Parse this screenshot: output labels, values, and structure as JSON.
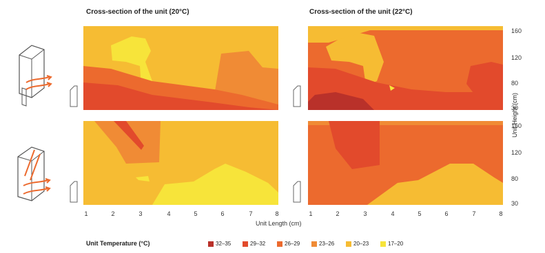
{
  "chart_data": {
    "type": "heatmap",
    "titles": [
      "Cross-section of the unit (20°C)",
      "Cross-section of the unit (22°C)"
    ],
    "xlabel": "Unit Length (cm)",
    "ylabel": "Unit Height (cm)",
    "xticks": [
      "1",
      "2",
      "3",
      "4",
      "5",
      "6",
      "7",
      "8"
    ],
    "yticks": [
      "160",
      "120",
      "80",
      "30"
    ],
    "legend_title": "Unit Temperature (°C)",
    "legend": [
      {
        "label": "32–35",
        "color": "#b9312a"
      },
      {
        "label": "29–32",
        "color": "#e24a2c"
      },
      {
        "label": "26–29",
        "color": "#ec6a2e"
      },
      {
        "label": "23–26",
        "color": "#f08b35"
      },
      {
        "label": "20–23",
        "color": "#f6bc33"
      },
      {
        "label": "17–20",
        "color": "#f7e43a"
      }
    ]
  }
}
